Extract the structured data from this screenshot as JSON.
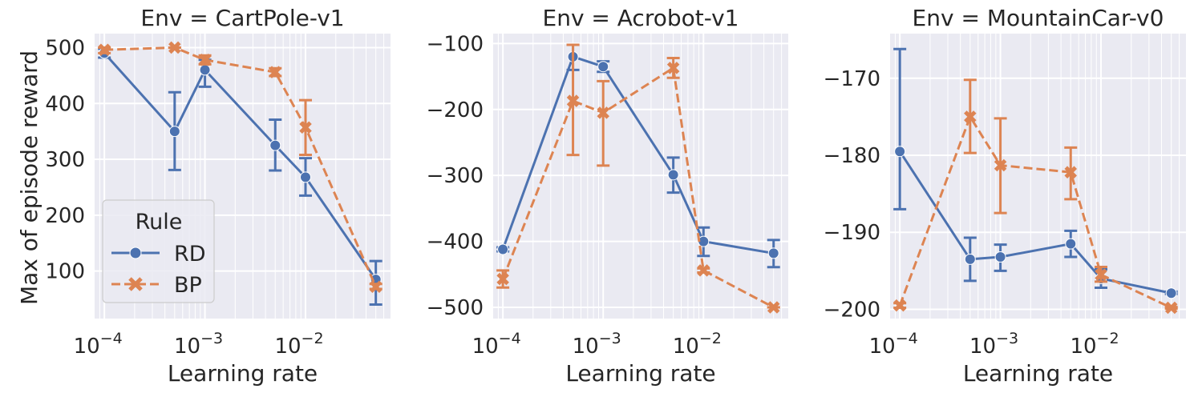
{
  "figure": {
    "ylabel": "Max of episode reward",
    "xlabel": "Learning rate"
  },
  "legend": {
    "title": "Rule",
    "entries": [
      "RD",
      "BP"
    ]
  },
  "colors": {
    "RD": "#4c72b0",
    "BP": "#dd8452",
    "plot_bg": "#eaeaf2",
    "grid": "#ffffff"
  },
  "chart_data": [
    {
      "type": "line",
      "title": "Env = CartPole-v1",
      "xlabel": "Learning rate",
      "ylabel": "Max of episode reward",
      "xscale": "log",
      "xlim": [
        8e-05,
        0.07
      ],
      "ylim": [
        15,
        525
      ],
      "yticks": [
        100,
        200,
        300,
        400,
        500
      ],
      "xticks": [
        0.0001,
        0.001,
        0.01
      ],
      "xtick_labels": [
        [
          "10",
          "−4"
        ],
        [
          "10",
          "−3"
        ],
        [
          "10",
          "−2"
        ]
      ],
      "grid": true,
      "legend_position": "lower-left",
      "series": [
        {
          "name": "RD",
          "marker": "circle",
          "dashed": false,
          "x": [
            0.0001,
            0.0005,
            0.001,
            0.005,
            0.01,
            0.05
          ],
          "y": [
            490,
            350,
            460,
            325,
            268,
            85
          ],
          "err_low": [
            482,
            281,
            430,
            280,
            235,
            40
          ],
          "err_high": [
            498,
            420,
            478,
            371,
            302,
            118
          ]
        },
        {
          "name": "BP",
          "marker": "x",
          "dashed": true,
          "x": [
            0.0001,
            0.0005,
            0.001,
            0.005,
            0.01,
            0.05
          ],
          "y": [
            496,
            500,
            478,
            456,
            357,
            72
          ],
          "err_low": [
            490,
            500,
            470,
            449,
            308,
            68
          ],
          "err_high": [
            500,
            500,
            486,
            463,
            406,
            77
          ]
        }
      ]
    },
    {
      "type": "line",
      "title": "Env = Acrobot-v1",
      "xlabel": "Learning rate",
      "ylabel": "",
      "xscale": "log",
      "xlim": [
        8e-05,
        0.07
      ],
      "ylim": [
        -517,
        -85
      ],
      "yticks": [
        -500,
        -400,
        -300,
        -200,
        -100
      ],
      "ytick_labels": [
        "−500",
        "−400",
        "−300",
        "−200",
        "−100"
      ],
      "xticks": [
        0.0001,
        0.001,
        0.01
      ],
      "xtick_labels": [
        [
          "10",
          "−4"
        ],
        [
          "10",
          "−3"
        ],
        [
          "10",
          "−2"
        ]
      ],
      "grid": true,
      "series": [
        {
          "name": "RD",
          "marker": "circle",
          "dashed": false,
          "x": [
            0.0001,
            0.0005,
            0.001,
            0.005,
            0.01,
            0.05
          ],
          "y": [
            -412,
            -120,
            -135,
            -299,
            -400,
            -418
          ],
          "err_low": [
            -415,
            -140,
            -143,
            -326,
            -422,
            -439
          ],
          "err_high": [
            -409,
            -102,
            -127,
            -273,
            -379,
            -398
          ]
        },
        {
          "name": "BP",
          "marker": "x",
          "dashed": true,
          "x": [
            0.0001,
            0.0005,
            0.001,
            0.005,
            0.01,
            0.05
          ],
          "y": [
            -457,
            -187,
            -205,
            -137,
            -444,
            -500
          ],
          "err_low": [
            -470,
            -269,
            -285,
            -152,
            -447,
            -500
          ],
          "err_high": [
            -444,
            -102,
            -157,
            -122,
            -441,
            -500
          ]
        }
      ]
    },
    {
      "type": "line",
      "title": "Env = MountainCar-v0",
      "xlabel": "Learning rate",
      "ylabel": "",
      "xscale": "log",
      "xlim": [
        8e-05,
        0.07
      ],
      "ylim": [
        -201.2,
        -164.2
      ],
      "yticks": [
        -200,
        -190,
        -180,
        -170
      ],
      "ytick_labels": [
        "−200",
        "−190",
        "−180",
        "−170"
      ],
      "xticks": [
        0.0001,
        0.001,
        0.01
      ],
      "xtick_labels": [
        [
          "10",
          "−4"
        ],
        [
          "10",
          "−3"
        ],
        [
          "10",
          "−2"
        ]
      ],
      "grid": true,
      "series": [
        {
          "name": "RD",
          "marker": "circle",
          "dashed": false,
          "x": [
            0.0001,
            0.0005,
            0.001,
            0.005,
            0.01,
            0.05
          ],
          "y": [
            -179.5,
            -193.5,
            -193.2,
            -191.5,
            -196.0,
            -197.9
          ],
          "err_low": [
            -187.0,
            -196.3,
            -195.0,
            -193.2,
            -197.2,
            -198.0
          ],
          "err_high": [
            -166.2,
            -190.7,
            -191.6,
            -189.8,
            -194.8,
            -197.7
          ]
        },
        {
          "name": "BP",
          "marker": "x",
          "dashed": true,
          "x": [
            0.0001,
            0.0005,
            0.001,
            0.005,
            0.01,
            0.05
          ],
          "y": [
            -199.5,
            -175.0,
            -181.3,
            -182.2,
            -195.5,
            -199.8
          ],
          "err_low": [
            -199.8,
            -179.7,
            -187.5,
            -185.7,
            -196.4,
            -199.9
          ],
          "err_high": [
            -199.2,
            -170.2,
            -175.2,
            -179.0,
            -194.5,
            -199.7
          ]
        }
      ]
    }
  ]
}
